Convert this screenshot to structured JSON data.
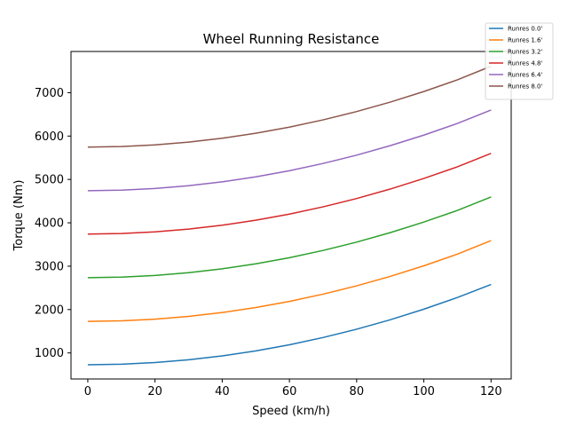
{
  "chart_data": {
    "type": "line",
    "title": "Wheel Running Resistance",
    "xlabel": "Speed (km/h)",
    "ylabel": "Torque (Nm)",
    "xlim": [
      -5,
      126
    ],
    "ylim": [
      400,
      7950
    ],
    "xticks": [
      0,
      20,
      40,
      60,
      80,
      100,
      120
    ],
    "yticks": [
      1000,
      2000,
      3000,
      4000,
      5000,
      6000,
      7000
    ],
    "grid": false,
    "legend_position": "top-right outside",
    "x": [
      0,
      10,
      20,
      30,
      40,
      50,
      60,
      70,
      80,
      90,
      100,
      110,
      120
    ],
    "series": [
      {
        "name": "Runres 0.0'",
        "color": "#1f77b4",
        "values": [
          727,
          740,
          778,
          842,
          932,
          1047,
          1188,
          1355,
          1547,
          1765,
          2009,
          2278,
          2577
        ]
      },
      {
        "name": "Runres 1.6'",
        "color": "#ff7f0e",
        "values": [
          1727,
          1740,
          1778,
          1842,
          1932,
          2047,
          2188,
          2355,
          2547,
          2765,
          3009,
          3278,
          3590
        ]
      },
      {
        "name": "Runres 3.2'",
        "color": "#2ca02c",
        "values": [
          2735,
          2748,
          2786,
          2850,
          2940,
          3055,
          3196,
          3363,
          3555,
          3773,
          4017,
          4286,
          4595
        ]
      },
      {
        "name": "Runres 4.8'",
        "color": "#d62728",
        "values": [
          3740,
          3753,
          3791,
          3855,
          3945,
          4060,
          4201,
          4368,
          4560,
          4778,
          5022,
          5291,
          5600
        ]
      },
      {
        "name": "Runres 6.4'",
        "color": "#9467bd",
        "values": [
          4740,
          4753,
          4791,
          4855,
          4945,
          5060,
          5201,
          5368,
          5560,
          5778,
          6022,
          6291,
          6600
        ]
      },
      {
        "name": "Runres 8.0'",
        "color": "#8c564b",
        "values": [
          5745,
          5758,
          5796,
          5860,
          5950,
          6065,
          6206,
          6373,
          6565,
          6783,
          7027,
          7296,
          7610
        ]
      }
    ]
  }
}
